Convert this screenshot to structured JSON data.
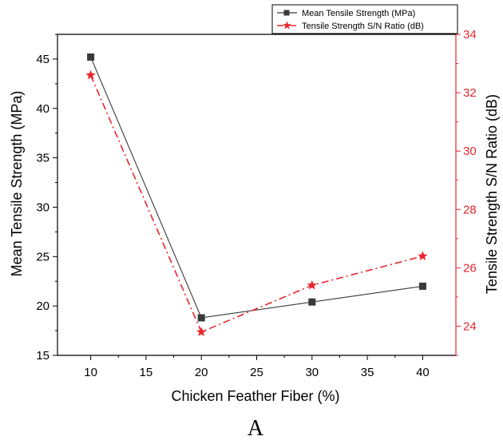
{
  "chart_data": {
    "type": "line",
    "x": [
      10,
      20,
      30,
      40
    ],
    "xlabel": "Chicken Feather Fiber (%)",
    "xlim": [
      7,
      43
    ],
    "xticks": [
      10,
      15,
      20,
      25,
      30,
      35,
      40
    ],
    "ylabel": "Mean Tensile Strength (MPa)",
    "ylim": [
      15,
      47.5
    ],
    "yticks": [
      15,
      20,
      25,
      30,
      35,
      40,
      45
    ],
    "y2label": "Tensile Strength S/N Ratio (dB)",
    "y2lim": [
      23,
      34
    ],
    "y2ticks": [
      24,
      26,
      28,
      30,
      32,
      34
    ],
    "grid": false,
    "legend_position": "top-right",
    "series": [
      {
        "name": "Mean Tensile Strength (MPa)",
        "axis": "left",
        "values": [
          45.2,
          18.8,
          20.4,
          22.0
        ],
        "color": "#3a3a3a",
        "marker": "square",
        "line_style": "solid"
      },
      {
        "name": "Tensile Strength S/N Ratio (dB)",
        "axis": "right",
        "values": [
          32.6,
          23.8,
          25.4,
          26.4
        ],
        "color": "#e8262e",
        "marker": "star",
        "line_style": "dash-dot"
      }
    ]
  },
  "caption": "A",
  "colors": {
    "left_axis": "#000000",
    "right_axis": "#e8262e"
  }
}
